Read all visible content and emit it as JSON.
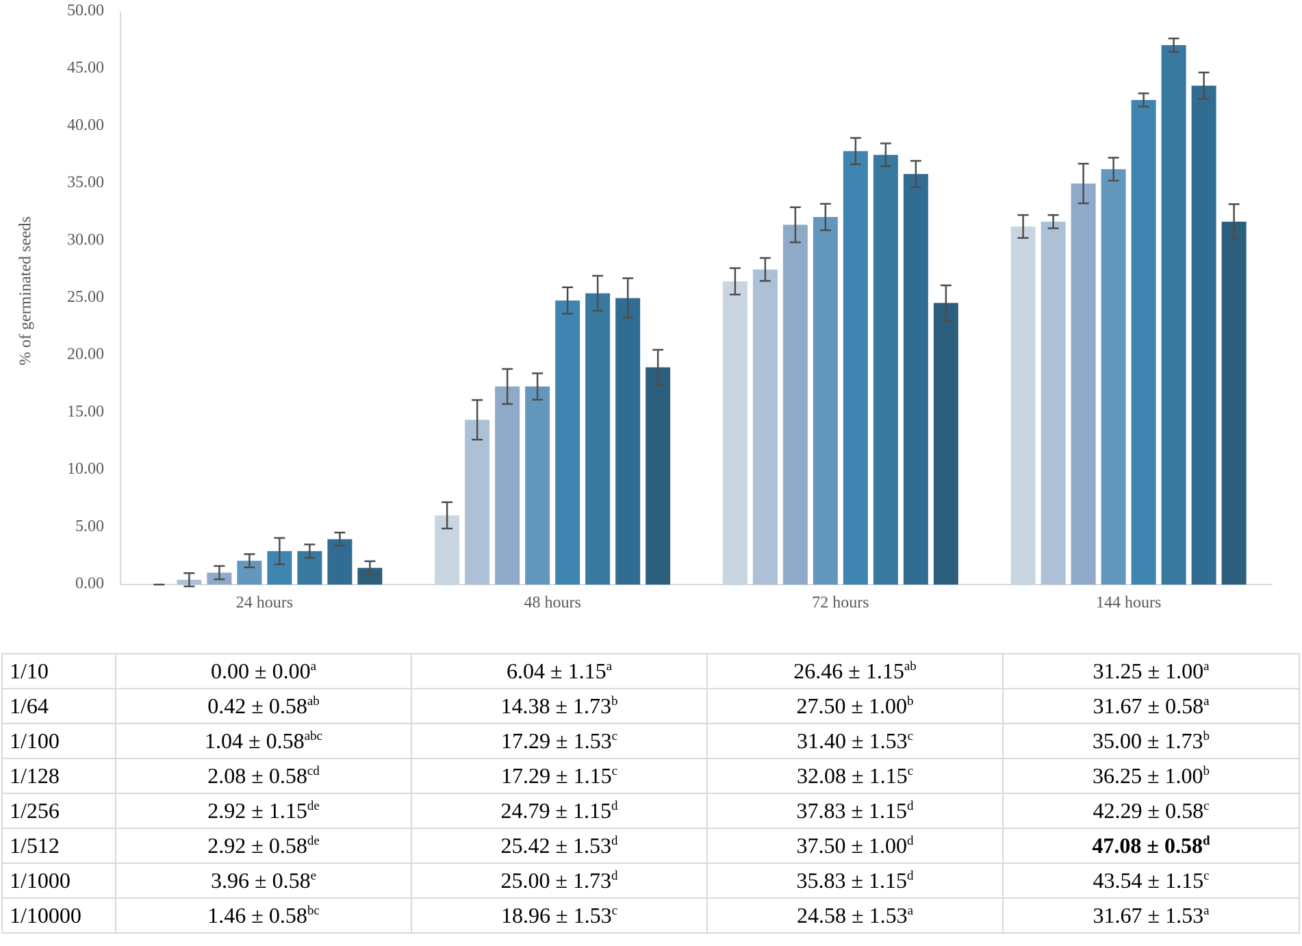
{
  "chart_data": {
    "type": "bar",
    "y_label": "% of germinated seeds",
    "categories": [
      "24 hours",
      "48 hours",
      "72 hours",
      "144 hours"
    ],
    "ylim": [
      0,
      50
    ],
    "yticks": [
      {
        "value": 0,
        "label": "0.00"
      },
      {
        "value": 5,
        "label": "5.00"
      },
      {
        "value": 10,
        "label": "10.00"
      },
      {
        "value": 15,
        "label": "15.00"
      },
      {
        "value": 20,
        "label": "20.00"
      },
      {
        "value": 25,
        "label": "25.00"
      },
      {
        "value": 30,
        "label": "30.00"
      },
      {
        "value": 35,
        "label": "35.00"
      },
      {
        "value": 40,
        "label": "40.00"
      },
      {
        "value": 45,
        "label": "45.00"
      },
      {
        "value": 50,
        "label": "50.00"
      }
    ],
    "grid": false,
    "error_color": "#4d4d4d",
    "series": [
      {
        "name": "1/10",
        "color": "#c9d6e2",
        "values": [
          0,
          6.04,
          26.46,
          31.25
        ],
        "errors": [
          0,
          1.15,
          1.15,
          1.0
        ],
        "value_labels": [
          "0.00 ± 0.00",
          "6.04 ± 1.15",
          "26.46 ± 1.15",
          "31.25 ± 1.00"
        ],
        "letters": [
          "a",
          "a",
          "ab",
          "a"
        ]
      },
      {
        "name": "1/64",
        "color": "#adc1d6",
        "values": [
          0.42,
          14.38,
          27.5,
          31.67
        ],
        "errors": [
          0.58,
          1.73,
          1.0,
          0.58
        ],
        "value_labels": [
          "0.42 ± 0.58",
          "14.38 ± 1.73",
          "27.50 ± 1.00",
          "31.67 ± 0.58"
        ],
        "letters": [
          "ab",
          "b",
          "b",
          "a"
        ]
      },
      {
        "name": "1/100",
        "color": "#8eaac8",
        "values": [
          1.04,
          17.29,
          31.4,
          35.0
        ],
        "errors": [
          0.58,
          1.53,
          1.53,
          1.73
        ],
        "value_labels": [
          "1.04 ± 0.58",
          "17.29 ± 1.53",
          "31.40 ± 1.53",
          "35.00 ± 1.73"
        ],
        "letters": [
          "abc",
          "c",
          "c",
          "b"
        ]
      },
      {
        "name": "1/128",
        "color": "#6497be",
        "values": [
          2.08,
          17.29,
          32.08,
          36.25
        ],
        "errors": [
          0.58,
          1.15,
          1.15,
          1.0
        ],
        "value_labels": [
          "2.08 ± 0.58",
          "17.29 ± 1.15",
          "32.08 ± 1.15",
          "36.25 ± 1.00"
        ],
        "letters": [
          "cd",
          "c",
          "c",
          "b"
        ]
      },
      {
        "name": "1/256",
        "color": "#3f85b0",
        "values": [
          2.92,
          24.79,
          37.83,
          42.29
        ],
        "errors": [
          1.15,
          1.15,
          1.15,
          0.58
        ],
        "value_labels": [
          "2.92 ± 1.15",
          "24.79 ± 1.15",
          "37.83 ± 1.15",
          "42.29 ± 0.58"
        ],
        "letters": [
          "de",
          "d",
          "d",
          "c"
        ]
      },
      {
        "name": "1/512",
        "color": "#37799f",
        "values": [
          2.92,
          25.42,
          37.5,
          47.08
        ],
        "errors": [
          0.58,
          1.53,
          1.0,
          0.58
        ],
        "value_labels": [
          "2.92 ± 0.58",
          "25.42 ± 1.53",
          "37.50 ± 1.00",
          "47.08 ± 0.58"
        ],
        "letters": [
          "de",
          "d",
          "d",
          "d"
        ]
      },
      {
        "name": "1/1000",
        "color": "#316d93",
        "values": [
          3.96,
          25.0,
          35.83,
          43.54
        ],
        "errors": [
          0.58,
          1.73,
          1.15,
          1.15
        ],
        "value_labels": [
          "3.96 ± 0.58",
          "25.00 ± 1.73",
          "35.83 ± 1.15",
          "43.54 ± 1.15"
        ],
        "letters": [
          "e",
          "d",
          "d",
          "c"
        ]
      },
      {
        "name": "1/10000",
        "color": "#2c5f7e",
        "values": [
          1.46,
          18.96,
          24.58,
          31.67
        ],
        "errors": [
          0.58,
          1.53,
          1.53,
          1.53
        ],
        "value_labels": [
          "1.46 ± 0.58",
          "18.96 ± 1.53",
          "24.58 ± 1.53",
          "31.67 ± 1.53"
        ],
        "letters": [
          "bc",
          "c",
          "a",
          "a"
        ]
      }
    ],
    "highlight": {
      "series": 5,
      "category": 3
    }
  }
}
